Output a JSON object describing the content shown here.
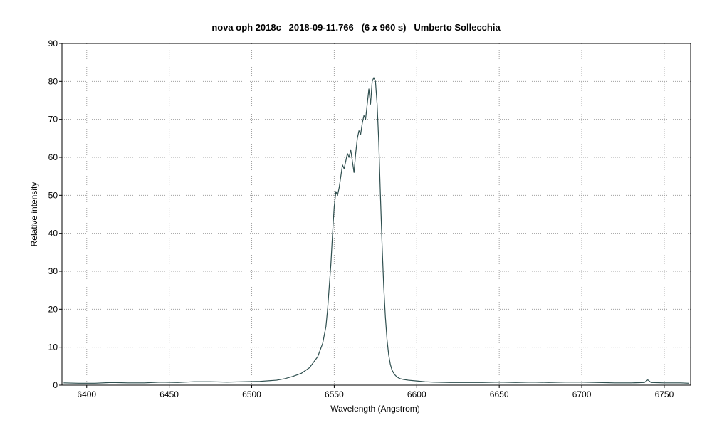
{
  "chart_data": {
    "type": "line",
    "title": "nova oph 2018c   2018-09-11.766   (6 x 960 s)   Umberto Sollecchia",
    "xlabel": "Wavelength (Angstrom)",
    "ylabel": "Relative intensity",
    "xlim": [
      6385,
      6766
    ],
    "ylim": [
      0,
      90
    ],
    "xticks": [
      6400,
      6450,
      6500,
      6550,
      6600,
      6650,
      6700,
      6750
    ],
    "yticks": [
      0,
      10,
      20,
      30,
      40,
      50,
      60,
      70,
      80,
      90
    ],
    "grid": true,
    "legend": "none",
    "colors": {
      "line": "#2f4f4f",
      "grid": "#a0a0a0",
      "frame": "#000000"
    },
    "series": [
      {
        "x": [
          6386,
          6395,
          6405,
          6415,
          6425,
          6435,
          6445,
          6455,
          6465,
          6475,
          6485,
          6495,
          6505,
          6515,
          6520,
          6525,
          6530,
          6535,
          6540,
          6543,
          6545,
          6546,
          6547,
          6548,
          6549,
          6550,
          6551,
          6552,
          6553,
          6554,
          6555,
          6556,
          6557,
          6558,
          6559,
          6560,
          6561,
          6562,
          6563,
          6564,
          6565,
          6566,
          6567,
          6568,
          6569,
          6570,
          6571,
          6572,
          6573,
          6574,
          6575,
          6576,
          6577,
          6578,
          6579,
          6580,
          6581,
          6582,
          6583,
          6584,
          6585,
          6586,
          6587,
          6588,
          6589,
          6590,
          6592,
          6595,
          6600,
          6605,
          6610,
          6620,
          6630,
          6640,
          6650,
          6660,
          6670,
          6680,
          6690,
          6700,
          6710,
          6720,
          6730,
          6738,
          6740,
          6742,
          6750,
          6760,
          6765
        ],
        "y": [
          0.6,
          0.5,
          0.5,
          0.7,
          0.6,
          0.6,
          0.8,
          0.7,
          0.9,
          0.9,
          0.8,
          0.9,
          1.0,
          1.3,
          1.7,
          2.3,
          3.1,
          4.6,
          7.5,
          11,
          15.5,
          20,
          26,
          32,
          40,
          47,
          51,
          50,
          52,
          55,
          58,
          57,
          59,
          61,
          60,
          62,
          59,
          56,
          61,
          65,
          67,
          66,
          69,
          71,
          70,
          74,
          78,
          74,
          80,
          81,
          80,
          74,
          64,
          50,
          37,
          26,
          18,
          12,
          8,
          5.5,
          4.0,
          3.2,
          2.6,
          2.2,
          1.9,
          1.7,
          1.5,
          1.3,
          1.1,
          0.9,
          0.8,
          0.7,
          0.7,
          0.7,
          0.8,
          0.7,
          0.8,
          0.7,
          0.8,
          0.8,
          0.7,
          0.6,
          0.6,
          0.7,
          1.4,
          0.7,
          0.6,
          0.6,
          0.5
        ]
      }
    ]
  }
}
